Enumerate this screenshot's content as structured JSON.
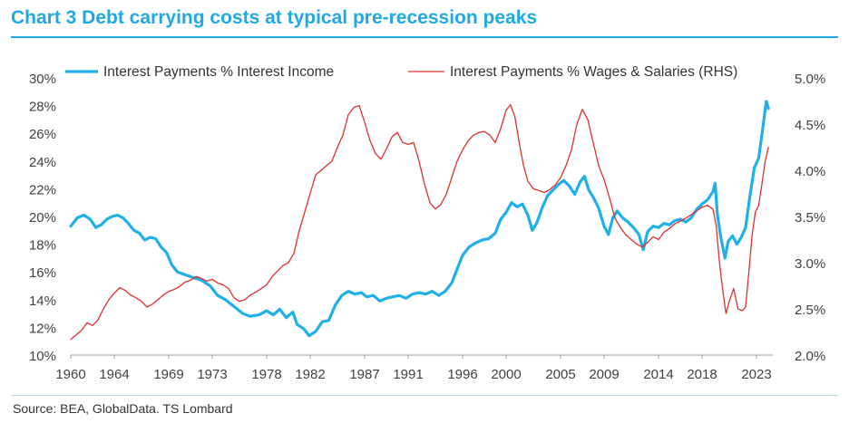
{
  "header": {
    "title": "Chart 3 Debt carrying costs at typical pre-recession peaks"
  },
  "footer": {
    "source": "Source: BEA, GlobalData. TS Lombard"
  },
  "colors": {
    "accent": "#1fa9e0",
    "series1": "#1fb0ea",
    "series2": "#e0302b"
  },
  "chart_data": {
    "type": "line",
    "title": "Chart 3 Debt carrying costs at typical pre-recession peaks",
    "x_range": [
      1960,
      2024.5
    ],
    "x_ticks": [
      1960,
      1964,
      1969,
      1973,
      1978,
      1982,
      1987,
      1991,
      1996,
      2000,
      2005,
      2009,
      2014,
      2018,
      2023
    ],
    "y_left": {
      "range": [
        10,
        30
      ],
      "ticks": [
        "10%",
        "12%",
        "14%",
        "16%",
        "18%",
        "20%",
        "22%",
        "24%",
        "26%",
        "28%",
        "30%"
      ]
    },
    "y_right": {
      "range": [
        2.0,
        5.0
      ],
      "ticks": [
        "2.0%",
        "2.5%",
        "3.0%",
        "3.5%",
        "4.0%",
        "4.5%",
        "5.0%"
      ]
    },
    "legend": "top",
    "series": [
      {
        "name": "Interest Payments % Interest Income",
        "axis": "left",
        "color": "#1fb0ea",
        "points": [
          [
            1960,
            19.3
          ],
          [
            1960.6,
            19.9
          ],
          [
            1961.2,
            20.1
          ],
          [
            1961.8,
            19.8
          ],
          [
            1962.3,
            19.2
          ],
          [
            1962.8,
            19.4
          ],
          [
            1963.3,
            19.8
          ],
          [
            1963.8,
            20.0
          ],
          [
            1964.3,
            20.1
          ],
          [
            1964.8,
            19.9
          ],
          [
            1965.3,
            19.5
          ],
          [
            1965.8,
            19.0
          ],
          [
            1966.3,
            18.8
          ],
          [
            1966.8,
            18.3
          ],
          [
            1967.3,
            18.5
          ],
          [
            1967.8,
            18.4
          ],
          [
            1968.3,
            17.8
          ],
          [
            1968.8,
            17.4
          ],
          [
            1969.3,
            16.5
          ],
          [
            1969.8,
            16.0
          ],
          [
            1970.5,
            15.8
          ],
          [
            1971.2,
            15.6
          ],
          [
            1972,
            15.4
          ],
          [
            1972.8,
            15.0
          ],
          [
            1973.5,
            14.3
          ],
          [
            1974.2,
            14.0
          ],
          [
            1975,
            13.5
          ],
          [
            1975.8,
            13.0
          ],
          [
            1976.5,
            12.8
          ],
          [
            1977.3,
            12.9
          ],
          [
            1978,
            13.2
          ],
          [
            1978.6,
            12.9
          ],
          [
            1979.2,
            13.3
          ],
          [
            1979.8,
            12.7
          ],
          [
            1980.4,
            13.1
          ],
          [
            1980.8,
            12.2
          ],
          [
            1981.4,
            11.9
          ],
          [
            1981.9,
            11.4
          ],
          [
            1982.5,
            11.7
          ],
          [
            1983.1,
            12.4
          ],
          [
            1983.7,
            12.5
          ],
          [
            1984.3,
            13.6
          ],
          [
            1984.9,
            14.3
          ],
          [
            1985.5,
            14.6
          ],
          [
            1986.1,
            14.4
          ],
          [
            1986.7,
            14.5
          ],
          [
            1987.2,
            14.2
          ],
          [
            1987.8,
            14.3
          ],
          [
            1988.4,
            13.9
          ],
          [
            1989,
            14.1
          ],
          [
            1989.6,
            14.2
          ],
          [
            1990.2,
            14.3
          ],
          [
            1990.8,
            14.1
          ],
          [
            1991.4,
            14.4
          ],
          [
            1992,
            14.5
          ],
          [
            1992.6,
            14.4
          ],
          [
            1993.2,
            14.6
          ],
          [
            1993.8,
            14.3
          ],
          [
            1994.4,
            14.6
          ],
          [
            1995,
            15.2
          ],
          [
            1995.5,
            16.2
          ],
          [
            1996,
            17.2
          ],
          [
            1996.6,
            17.8
          ],
          [
            1997.2,
            18.1
          ],
          [
            1997.8,
            18.3
          ],
          [
            1998.4,
            18.4
          ],
          [
            1999,
            18.8
          ],
          [
            1999.5,
            19.8
          ],
          [
            2000,
            20.3
          ],
          [
            2000.5,
            21.0
          ],
          [
            2001,
            20.7
          ],
          [
            2001.5,
            20.9
          ],
          [
            2002,
            20.1
          ],
          [
            2002.4,
            19.0
          ],
          [
            2002.8,
            19.5
          ],
          [
            2003.3,
            20.6
          ],
          [
            2003.8,
            21.5
          ],
          [
            2004.3,
            21.9
          ],
          [
            2004.8,
            22.3
          ],
          [
            2005.3,
            22.6
          ],
          [
            2005.8,
            22.2
          ],
          [
            2006.3,
            21.6
          ],
          [
            2006.8,
            22.5
          ],
          [
            2007.2,
            22.9
          ],
          [
            2007.6,
            21.9
          ],
          [
            2008,
            21.4
          ],
          [
            2008.5,
            20.6
          ],
          [
            2009,
            19.3
          ],
          [
            2009.4,
            18.7
          ],
          [
            2009.8,
            19.9
          ],
          [
            2010.2,
            20.4
          ],
          [
            2010.7,
            19.9
          ],
          [
            2011.2,
            19.6
          ],
          [
            2011.7,
            19.2
          ],
          [
            2012.2,
            18.7
          ],
          [
            2012.6,
            17.6
          ],
          [
            2013,
            18.9
          ],
          [
            2013.5,
            19.3
          ],
          [
            2014,
            19.2
          ],
          [
            2014.5,
            19.5
          ],
          [
            2015,
            19.4
          ],
          [
            2015.5,
            19.7
          ],
          [
            2016,
            19.8
          ],
          [
            2016.5,
            19.6
          ],
          [
            2017,
            19.9
          ],
          [
            2017.5,
            20.5
          ],
          [
            2018,
            20.9
          ],
          [
            2018.5,
            21.2
          ],
          [
            2019,
            21.8
          ],
          [
            2019.2,
            22.4
          ],
          [
            2019.4,
            20.2
          ],
          [
            2019.7,
            18.6
          ],
          [
            2020.1,
            17.0
          ],
          [
            2020.4,
            18.2
          ],
          [
            2020.8,
            18.6
          ],
          [
            2021.2,
            18.0
          ],
          [
            2021.6,
            18.5
          ],
          [
            2022,
            19.2
          ],
          [
            2022.4,
            21.5
          ],
          [
            2022.8,
            23.5
          ],
          [
            2023.2,
            24.2
          ],
          [
            2023.6,
            26.5
          ],
          [
            2023.9,
            28.3
          ],
          [
            2024.1,
            27.8
          ]
        ]
      },
      {
        "name": "Interest Payments % Wages & Salaries (RHS)",
        "axis": "right",
        "color": "#e0302b",
        "points": [
          [
            1960,
            2.17
          ],
          [
            1960.5,
            2.22
          ],
          [
            1961,
            2.27
          ],
          [
            1961.5,
            2.35
          ],
          [
            1962,
            2.32
          ],
          [
            1962.5,
            2.38
          ],
          [
            1963,
            2.5
          ],
          [
            1963.5,
            2.6
          ],
          [
            1964,
            2.67
          ],
          [
            1964.5,
            2.73
          ],
          [
            1965,
            2.7
          ],
          [
            1965.5,
            2.65
          ],
          [
            1966,
            2.62
          ],
          [
            1966.5,
            2.58
          ],
          [
            1967,
            2.52
          ],
          [
            1967.5,
            2.55
          ],
          [
            1968,
            2.6
          ],
          [
            1968.5,
            2.65
          ],
          [
            1969,
            2.69
          ],
          [
            1969.5,
            2.71
          ],
          [
            1970,
            2.74
          ],
          [
            1970.5,
            2.79
          ],
          [
            1971,
            2.81
          ],
          [
            1971.5,
            2.85
          ],
          [
            1972,
            2.83
          ],
          [
            1972.5,
            2.8
          ],
          [
            1973,
            2.82
          ],
          [
            1973.5,
            2.78
          ],
          [
            1974,
            2.76
          ],
          [
            1974.5,
            2.72
          ],
          [
            1975,
            2.62
          ],
          [
            1975.5,
            2.58
          ],
          [
            1976,
            2.6
          ],
          [
            1976.5,
            2.65
          ],
          [
            1977,
            2.68
          ],
          [
            1977.5,
            2.72
          ],
          [
            1978,
            2.76
          ],
          [
            1978.5,
            2.85
          ],
          [
            1979,
            2.91
          ],
          [
            1979.5,
            2.97
          ],
          [
            1980,
            3.0
          ],
          [
            1980.5,
            3.1
          ],
          [
            1981,
            3.35
          ],
          [
            1981.5,
            3.55
          ],
          [
            1982,
            3.75
          ],
          [
            1982.5,
            3.95
          ],
          [
            1983,
            4.0
          ],
          [
            1983.5,
            4.05
          ],
          [
            1984,
            4.1
          ],
          [
            1984.5,
            4.25
          ],
          [
            1985,
            4.38
          ],
          [
            1985.5,
            4.6
          ],
          [
            1986,
            4.68
          ],
          [
            1986.5,
            4.7
          ],
          [
            1987,
            4.52
          ],
          [
            1987.5,
            4.32
          ],
          [
            1988,
            4.18
          ],
          [
            1988.5,
            4.12
          ],
          [
            1989,
            4.23
          ],
          [
            1989.5,
            4.36
          ],
          [
            1990,
            4.41
          ],
          [
            1990.5,
            4.3
          ],
          [
            1991,
            4.28
          ],
          [
            1991.5,
            4.3
          ],
          [
            1992,
            4.1
          ],
          [
            1992.5,
            3.85
          ],
          [
            1993,
            3.65
          ],
          [
            1993.5,
            3.58
          ],
          [
            1994,
            3.63
          ],
          [
            1994.5,
            3.74
          ],
          [
            1995,
            3.92
          ],
          [
            1995.5,
            4.1
          ],
          [
            1996,
            4.22
          ],
          [
            1996.5,
            4.32
          ],
          [
            1997,
            4.38
          ],
          [
            1997.5,
            4.41
          ],
          [
            1998,
            4.42
          ],
          [
            1998.5,
            4.38
          ],
          [
            1999,
            4.3
          ],
          [
            1999.5,
            4.45
          ],
          [
            2000,
            4.65
          ],
          [
            2000.4,
            4.71
          ],
          [
            2000.8,
            4.58
          ],
          [
            2001.2,
            4.3
          ],
          [
            2001.6,
            4.05
          ],
          [
            2002,
            3.88
          ],
          [
            2002.5,
            3.8
          ],
          [
            2003,
            3.78
          ],
          [
            2003.5,
            3.76
          ],
          [
            2004,
            3.79
          ],
          [
            2004.5,
            3.84
          ],
          [
            2005,
            3.92
          ],
          [
            2005.5,
            4.05
          ],
          [
            2006,
            4.22
          ],
          [
            2006.5,
            4.5
          ],
          [
            2007,
            4.66
          ],
          [
            2007.5,
            4.55
          ],
          [
            2008,
            4.3
          ],
          [
            2008.5,
            4.05
          ],
          [
            2009,
            3.9
          ],
          [
            2009.5,
            3.7
          ],
          [
            2010,
            3.48
          ],
          [
            2010.5,
            3.38
          ],
          [
            2011,
            3.3
          ],
          [
            2011.5,
            3.25
          ],
          [
            2012,
            3.2
          ],
          [
            2012.5,
            3.17
          ],
          [
            2013,
            3.22
          ],
          [
            2013.5,
            3.28
          ],
          [
            2014,
            3.25
          ],
          [
            2014.5,
            3.33
          ],
          [
            2015,
            3.37
          ],
          [
            2015.5,
            3.42
          ],
          [
            2016,
            3.45
          ],
          [
            2016.5,
            3.48
          ],
          [
            2017,
            3.52
          ],
          [
            2017.5,
            3.56
          ],
          [
            2018,
            3.6
          ],
          [
            2018.5,
            3.62
          ],
          [
            2019,
            3.58
          ],
          [
            2019.3,
            3.4
          ],
          [
            2019.6,
            3.0
          ],
          [
            2019.9,
            2.7
          ],
          [
            2020.2,
            2.45
          ],
          [
            2020.5,
            2.58
          ],
          [
            2020.9,
            2.72
          ],
          [
            2021.3,
            2.5
          ],
          [
            2021.7,
            2.48
          ],
          [
            2022,
            2.52
          ],
          [
            2022.3,
            2.9
          ],
          [
            2022.6,
            3.3
          ],
          [
            2022.9,
            3.55
          ],
          [
            2023.2,
            3.62
          ],
          [
            2023.5,
            3.85
          ],
          [
            2023.8,
            4.1
          ],
          [
            2024.1,
            4.25
          ]
        ]
      }
    ]
  }
}
